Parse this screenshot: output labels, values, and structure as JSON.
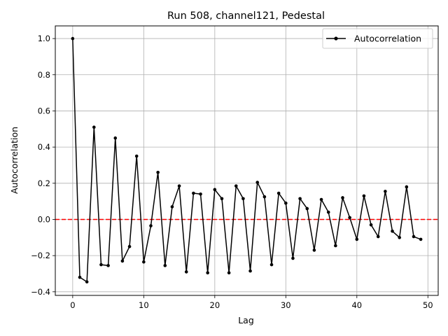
{
  "chart_data": {
    "type": "line",
    "title": "Run 508, channel121, Pedestal",
    "xlabel": "Lag",
    "ylabel": "Autocorrelation",
    "xlim": [
      -2.45,
      51.45
    ],
    "ylim": [
      -0.42,
      1.07
    ],
    "xticks": [
      0,
      10,
      20,
      30,
      40,
      50
    ],
    "yticks": [
      -0.4,
      -0.2,
      0.0,
      0.2,
      0.4,
      0.6,
      0.8,
      1.0
    ],
    "xtick_labels": [
      "0",
      "10",
      "20",
      "30",
      "40",
      "50"
    ],
    "ytick_labels": [
      "−0.4",
      "−0.2",
      "0.0",
      "0.2",
      "0.4",
      "0.6",
      "0.8",
      "1.0"
    ],
    "grid": true,
    "legend_position": "top-right",
    "series": [
      {
        "name": "Autocorrelation",
        "color": "#000000",
        "marker": "dot",
        "x": [
          0,
          1,
          2,
          3,
          4,
          5,
          6,
          7,
          8,
          9,
          10,
          11,
          12,
          13,
          14,
          15,
          16,
          17,
          18,
          19,
          20,
          21,
          22,
          23,
          24,
          25,
          26,
          27,
          28,
          29,
          30,
          31,
          32,
          33,
          34,
          35,
          36,
          37,
          38,
          39,
          40,
          41,
          42,
          43,
          44,
          45,
          46,
          47,
          48,
          49
        ],
        "y": [
          1.0,
          -0.32,
          -0.345,
          0.51,
          -0.25,
          -0.255,
          0.45,
          -0.23,
          -0.15,
          0.35,
          -0.235,
          -0.035,
          0.26,
          -0.255,
          0.07,
          0.185,
          -0.29,
          0.145,
          0.14,
          -0.295,
          0.165,
          0.115,
          -0.295,
          0.185,
          0.115,
          -0.285,
          0.205,
          0.125,
          -0.25,
          0.145,
          0.09,
          -0.215,
          0.115,
          0.06,
          -0.17,
          0.11,
          0.04,
          -0.145,
          0.12,
          0.01,
          -0.11,
          0.13,
          -0.03,
          -0.095,
          0.155,
          -0.065,
          -0.1,
          0.18,
          -0.095,
          -0.11
        ]
      }
    ],
    "reference_line": {
      "y": 0.0,
      "color": "#ff0000",
      "style": "dashed"
    }
  }
}
